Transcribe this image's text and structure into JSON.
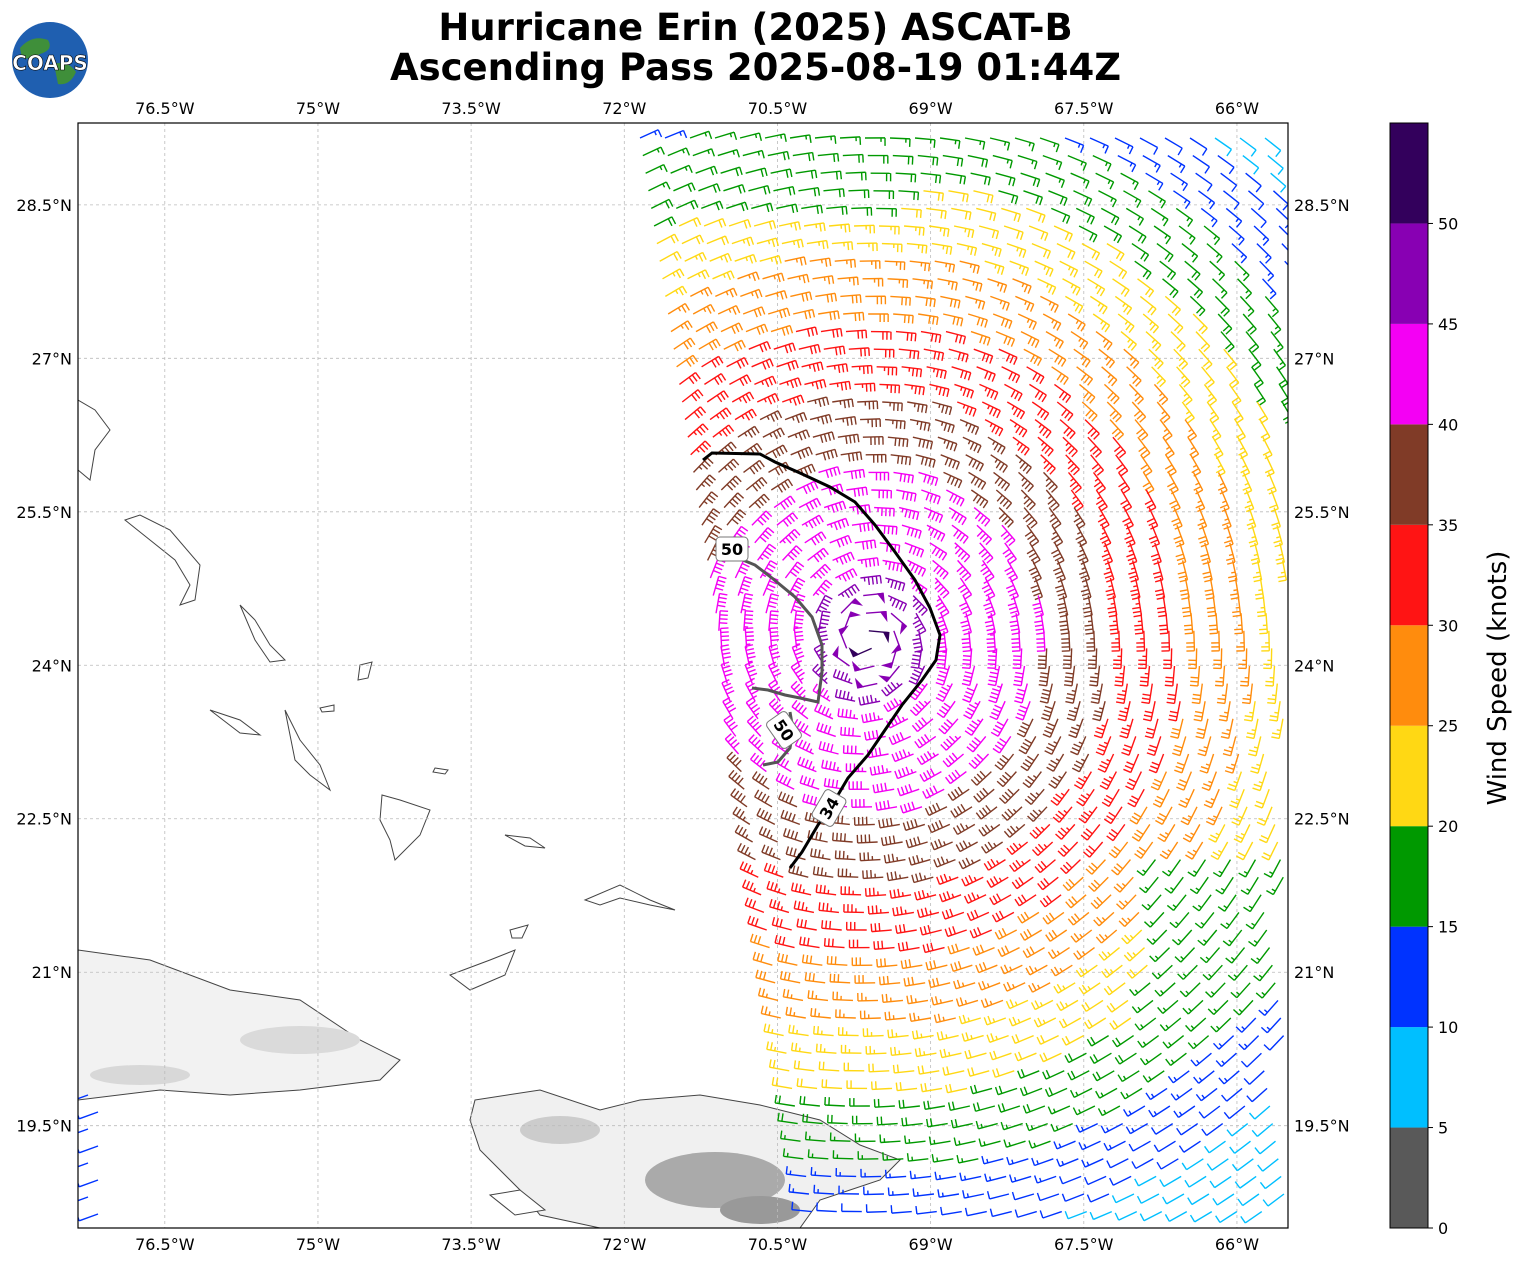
{
  "title": {
    "line1": "Hurricane Erin (2025) ASCAT-B",
    "line2": "Ascending Pass 2025-08-19 01:44Z"
  },
  "logo_text": "COAPS",
  "map": {
    "lon_range": [
      -77.35,
      -65.5
    ],
    "lat_range": [
      18.5,
      29.3
    ],
    "lon_ticks": [
      "76.5°W",
      "75°W",
      "73.5°W",
      "72°W",
      "70.5°W",
      "69°W",
      "67.5°W",
      "66°W"
    ],
    "lat_ticks": [
      "28.5°N",
      "27°N",
      "25.5°N",
      "24°N",
      "22.5°N",
      "21°N",
      "19.5°N"
    ],
    "gridlines": true
  },
  "contours": [
    {
      "label": "34",
      "color": "#000000"
    },
    {
      "label": "50",
      "color": "#555555"
    },
    {
      "label": "50",
      "color": "#555555"
    }
  ],
  "colorbar": {
    "title": "Wind Speed (knots)",
    "ticks": [
      "0",
      "5",
      "10",
      "15",
      "20",
      "25",
      "30",
      "35",
      "40",
      "45",
      "50"
    ],
    "colors": [
      "#595959",
      "#00bfff",
      "#0033ff",
      "#009900",
      "#ffd814",
      "#ff8c0d",
      "#ff1414",
      "#803b27",
      "#f400f4",
      "#8800b3",
      "#33005c"
    ]
  },
  "legend_color_by_speed": {
    "bin_0_5": "#595959",
    "bin_5_10": "#00bfff",
    "bin_10_15": "#0033ff",
    "bin_15_20": "#009900",
    "bin_20_25": "#ffd814",
    "bin_25_30": "#ff8c0d",
    "bin_30_35": "#ff1414",
    "bin_35_40": "#803b27",
    "bin_40_45": "#f400f4",
    "bin_45_50": "#8800b3",
    "bin_50_plus": "#33005c"
  }
}
